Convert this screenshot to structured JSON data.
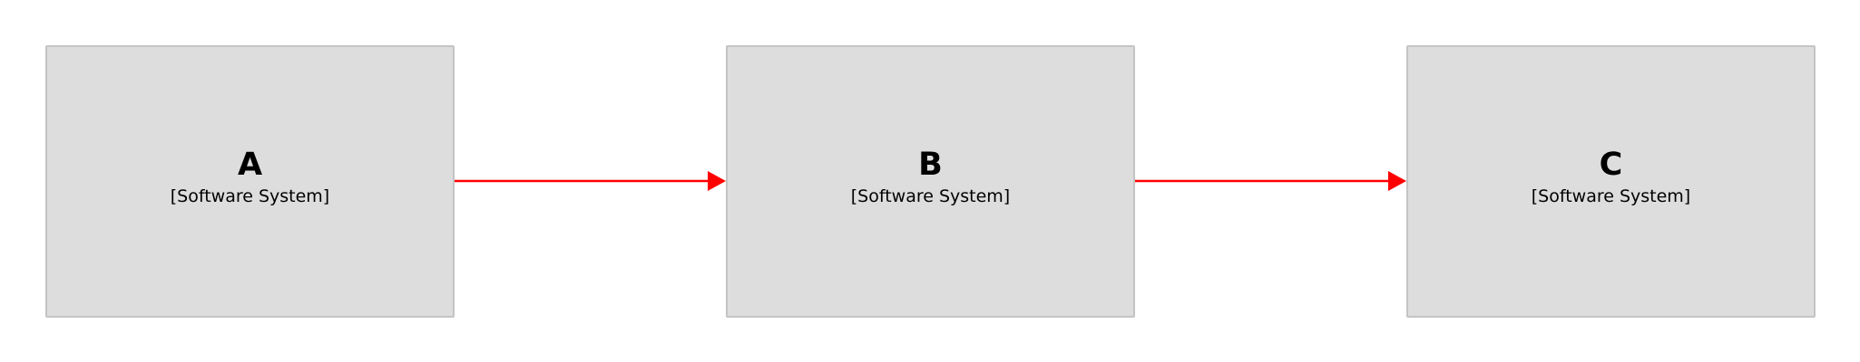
{
  "elements": [
    {
      "name": "A",
      "type": "[Software System]",
      "fill": "#dddddd",
      "stroke": "#c4c4c4"
    },
    {
      "name": "B",
      "type": "[Software System]",
      "fill": "#dddddd",
      "stroke": "#c4c4c4"
    },
    {
      "name": "C",
      "type": "[Software System]",
      "fill": "#dddddd",
      "stroke": "#c4c4c4"
    }
  ],
  "relationships": [
    {
      "source": "A",
      "destination": "B",
      "color": "#ff0000"
    },
    {
      "source": "B",
      "destination": "C",
      "color": "#ff0000"
    }
  ]
}
